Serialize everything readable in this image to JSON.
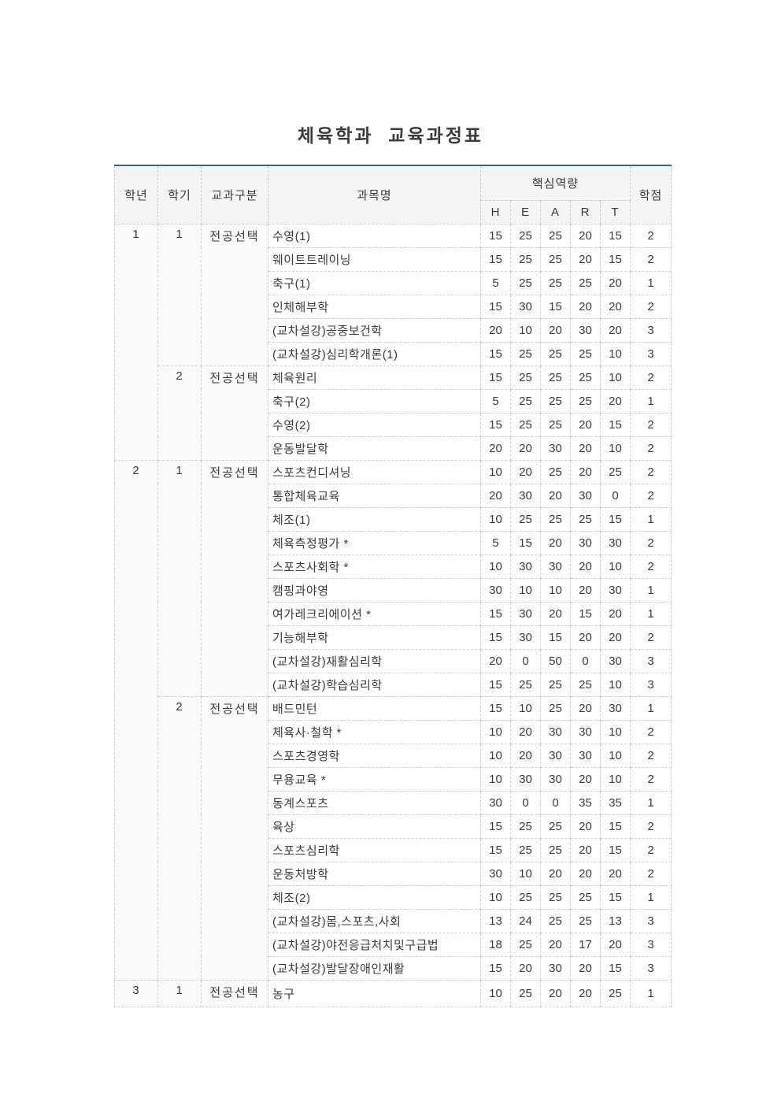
{
  "page_title": "체육학과 교육과정표",
  "colors": {
    "accent_border": "#2f6f74",
    "dashed_border": "#cccccc",
    "header_bg": "#f4f4f4",
    "text": "#3a3a3a"
  },
  "table": {
    "header": {
      "year": "학년",
      "semester": "학기",
      "category": "교과구분",
      "course": "과목명",
      "core_group": "핵심역량",
      "heart": [
        "H",
        "E",
        "A",
        "R",
        "T"
      ],
      "credit": "학점"
    },
    "groups": [
      {
        "year": "1",
        "year_rowspan": 10,
        "semester": "1",
        "category": "전공선택",
        "courses": [
          {
            "name": "수영(1)",
            "heart": [
              15,
              25,
              25,
              20,
              15
            ],
            "credit": 2
          },
          {
            "name": "웨이트트레이닝",
            "heart": [
              15,
              25,
              25,
              20,
              15
            ],
            "credit": 2
          },
          {
            "name": "축구(1)",
            "heart": [
              5,
              25,
              25,
              25,
              20
            ],
            "credit": 1
          },
          {
            "name": "인체해부학",
            "heart": [
              15,
              30,
              15,
              20,
              20
            ],
            "credit": 2
          },
          {
            "name": "(교차설강)공중보건학",
            "heart": [
              20,
              10,
              20,
              30,
              20
            ],
            "credit": 3
          },
          {
            "name": "(교차설강)심리학개론(1)",
            "heart": [
              15,
              25,
              25,
              25,
              10
            ],
            "credit": 3
          }
        ]
      },
      {
        "year": "",
        "year_rowspan": 0,
        "semester": "2",
        "category": "전공선택",
        "courses": [
          {
            "name": "체육원리",
            "heart": [
              15,
              25,
              25,
              25,
              10
            ],
            "credit": 2
          },
          {
            "name": "축구(2)",
            "heart": [
              5,
              25,
              25,
              25,
              20
            ],
            "credit": 1
          },
          {
            "name": "수영(2)",
            "heart": [
              15,
              25,
              25,
              20,
              15
            ],
            "credit": 2
          },
          {
            "name": "운동발달학",
            "heart": [
              20,
              20,
              30,
              20,
              10
            ],
            "credit": 2
          }
        ]
      },
      {
        "year": "2",
        "year_rowspan": 22,
        "semester": "1",
        "category": "전공선택",
        "courses": [
          {
            "name": "스포츠컨디셔닝",
            "heart": [
              10,
              20,
              25,
              20,
              25
            ],
            "credit": 2
          },
          {
            "name": "통합체육교육",
            "heart": [
              20,
              30,
              20,
              30,
              0
            ],
            "credit": 2
          },
          {
            "name": "체조(1)",
            "heart": [
              10,
              25,
              25,
              25,
              15
            ],
            "credit": 1
          },
          {
            "name": "체육측정평가 *",
            "heart": [
              5,
              15,
              20,
              30,
              30
            ],
            "credit": 2
          },
          {
            "name": "스포츠사회학 *",
            "heart": [
              10,
              30,
              30,
              20,
              10
            ],
            "credit": 2
          },
          {
            "name": "캠핑과야영",
            "heart": [
              30,
              10,
              10,
              20,
              30
            ],
            "credit": 1
          },
          {
            "name": "여가레크리에이션 *",
            "heart": [
              15,
              30,
              20,
              15,
              20
            ],
            "credit": 1
          },
          {
            "name": "기능해부학",
            "heart": [
              15,
              30,
              15,
              20,
              20
            ],
            "credit": 2
          },
          {
            "name": "(교차설강)재활심리학",
            "heart": [
              20,
              0,
              50,
              0,
              30
            ],
            "credit": 3
          },
          {
            "name": "(교차설강)학습심리학",
            "heart": [
              15,
              25,
              25,
              25,
              10
            ],
            "credit": 3
          }
        ]
      },
      {
        "year": "",
        "year_rowspan": 0,
        "semester": "2",
        "category": "전공선택",
        "courses": [
          {
            "name": "배드민턴",
            "heart": [
              15,
              10,
              25,
              20,
              30
            ],
            "credit": 1
          },
          {
            "name": "체육사·철학 *",
            "heart": [
              10,
              20,
              30,
              30,
              10
            ],
            "credit": 2
          },
          {
            "name": "스포츠경영학",
            "heart": [
              10,
              20,
              30,
              30,
              10
            ],
            "credit": 2
          },
          {
            "name": "무용교육 *",
            "heart": [
              10,
              30,
              30,
              20,
              10
            ],
            "credit": 2
          },
          {
            "name": "동계스포츠",
            "heart": [
              30,
              0,
              0,
              35,
              35
            ],
            "credit": 1
          },
          {
            "name": "육상",
            "heart": [
              15,
              25,
              25,
              20,
              15
            ],
            "credit": 2
          },
          {
            "name": "스포츠심리학",
            "heart": [
              15,
              25,
              25,
              20,
              15
            ],
            "credit": 2
          },
          {
            "name": "운동처방학",
            "heart": [
              30,
              10,
              20,
              20,
              20
            ],
            "credit": 2
          },
          {
            "name": "체조(2)",
            "heart": [
              10,
              25,
              25,
              25,
              15
            ],
            "credit": 1
          },
          {
            "name": "(교차설강)몸,스포츠,사회",
            "heart": [
              13,
              24,
              25,
              25,
              13
            ],
            "credit": 3
          },
          {
            "name": "(교차설강)야전응급처치및구급법",
            "heart": [
              18,
              25,
              20,
              17,
              20
            ],
            "credit": 3
          },
          {
            "name": "(교차설강)발달장애인재활",
            "heart": [
              15,
              20,
              30,
              20,
              15
            ],
            "credit": 3
          }
        ]
      },
      {
        "year": "3",
        "year_rowspan": 1,
        "semester": "1",
        "category": "전공선택",
        "courses": [
          {
            "name": "농구",
            "heart": [
              10,
              25,
              20,
              20,
              25
            ],
            "credit": 1
          }
        ]
      }
    ]
  }
}
